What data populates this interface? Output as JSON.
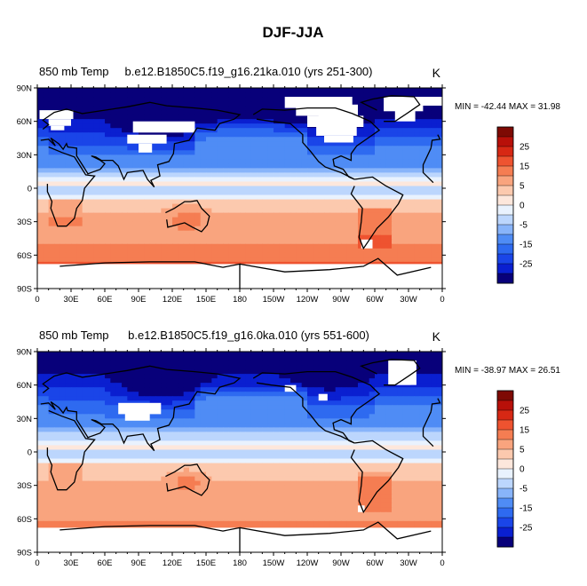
{
  "title": "DJF-JJA",
  "chart_data": {
    "type": "heatmap",
    "title": "DJF-JJA",
    "colorbar": {
      "levels": [
        -30,
        -25,
        -20,
        -15,
        -10,
        -5,
        -2.5,
        0,
        2.5,
        5,
        10,
        15,
        20,
        25,
        30
      ],
      "labels": [
        "25",
        "15",
        "5",
        "0",
        "-5",
        "-15",
        "-25"
      ],
      "colors": [
        "#08007a",
        "#0a1fd0",
        "#1a45e8",
        "#2e6af0",
        "#4f8cf5",
        "#88b4fa",
        "#bcd6fd",
        "#e9f2fe",
        "#fde7dc",
        "#fcc9ae",
        "#f9a47e",
        "#f57d52",
        "#ee5330",
        "#d72814",
        "#b81009",
        "#7e0a04"
      ]
    },
    "panels": [
      {
        "left_title": "850 mb Temp",
        "center_title": "b.e12.B1850C5.f19_g16.21ka.010 (yrs 251-300)",
        "units": "K",
        "min": -42.44,
        "max": 31.98,
        "minmax_label": "MIN = -42.44 MAX =  31.98",
        "lat_labels": [
          "90N",
          "60N",
          "30N",
          "0",
          "30S",
          "60S",
          "90S"
        ],
        "lon_labels": [
          "0",
          "30E",
          "60E",
          "90E",
          "120E",
          "150E",
          "180",
          "150W",
          "120W",
          "90W",
          "60W",
          "30W",
          "0"
        ]
      },
      {
        "left_title": "850 mb Temp",
        "center_title": "b.e12.B1850C5.f19_g16.0ka.010 (yrs 551-600)",
        "units": "K",
        "min": -38.97,
        "max": 26.51,
        "minmax_label": "MIN = -38.97 MAX =  26.51",
        "lat_labels": [
          "90N",
          "60N",
          "30N",
          "0",
          "30S",
          "60S",
          "90S"
        ],
        "lon_labels": [
          "0",
          "30E",
          "60E",
          "90E",
          "120E",
          "150E",
          "180",
          "150W",
          "120W",
          "90W",
          "60W",
          "30W",
          "0"
        ]
      }
    ]
  }
}
